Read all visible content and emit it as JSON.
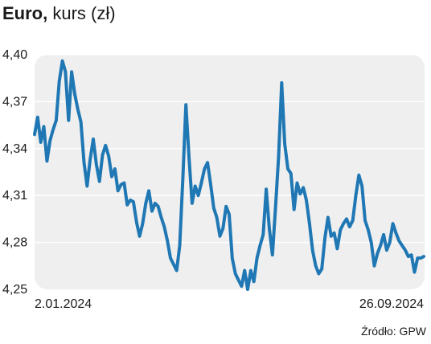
{
  "title": {
    "bold": "Euro,",
    "rest": " kurs (zł)"
  },
  "source": "Źródło: GPW",
  "colors": {
    "line": "#1f77b4",
    "plot_bg": "#efefef",
    "grid": "#ffffff",
    "text": "#1a1a1a"
  },
  "chart_data": {
    "type": "line",
    "title": "Euro, kurs (zł)",
    "x_start_label": "2.01.2024",
    "x_end_label": "26.09.2024",
    "ylim": [
      4.25,
      4.4
    ],
    "yticks": [
      "4,25",
      "4,28",
      "4,31",
      "4,34",
      "4,37",
      "4,40"
    ],
    "ytick_values": [
      4.25,
      4.28,
      4.31,
      4.34,
      4.37,
      4.4
    ],
    "grid": true,
    "series": [
      {
        "values": [
          4.349,
          4.36,
          4.344,
          4.354,
          4.332,
          4.345,
          4.352,
          4.358,
          4.383,
          4.396,
          4.389,
          4.358,
          4.389,
          4.375,
          4.365,
          4.357,
          4.331,
          4.316,
          4.333,
          4.346,
          4.33,
          4.319,
          4.336,
          4.342,
          4.335,
          4.322,
          4.327,
          4.313,
          4.317,
          4.318,
          4.304,
          4.307,
          4.306,
          4.293,
          4.284,
          4.292,
          4.305,
          4.313,
          4.3,
          4.305,
          4.303,
          4.296,
          4.29,
          4.281,
          4.27,
          4.266,
          4.262,
          4.278,
          4.321,
          4.368,
          4.334,
          4.305,
          4.316,
          4.31,
          4.318,
          4.327,
          4.331,
          4.317,
          4.302,
          4.296,
          4.284,
          4.289,
          4.303,
          4.298,
          4.27,
          4.26,
          4.256,
          4.252,
          4.262,
          4.25,
          4.262,
          4.255,
          4.27,
          4.278,
          4.285,
          4.314,
          4.289,
          4.272,
          4.302,
          4.335,
          4.382,
          4.343,
          4.327,
          4.324,
          4.301,
          4.318,
          4.311,
          4.315,
          4.307,
          4.292,
          4.275,
          4.265,
          4.26,
          4.263,
          4.283,
          4.296,
          4.284,
          4.286,
          4.276,
          4.288,
          4.292,
          4.295,
          4.29,
          4.294,
          4.31,
          4.323,
          4.316,
          4.294,
          4.288,
          4.28,
          4.265,
          4.273,
          4.278,
          4.285,
          4.275,
          4.28,
          4.292,
          4.286,
          4.281,
          4.278,
          4.275,
          4.271,
          4.272,
          4.261,
          4.27,
          4.27,
          4.271
        ]
      }
    ]
  }
}
